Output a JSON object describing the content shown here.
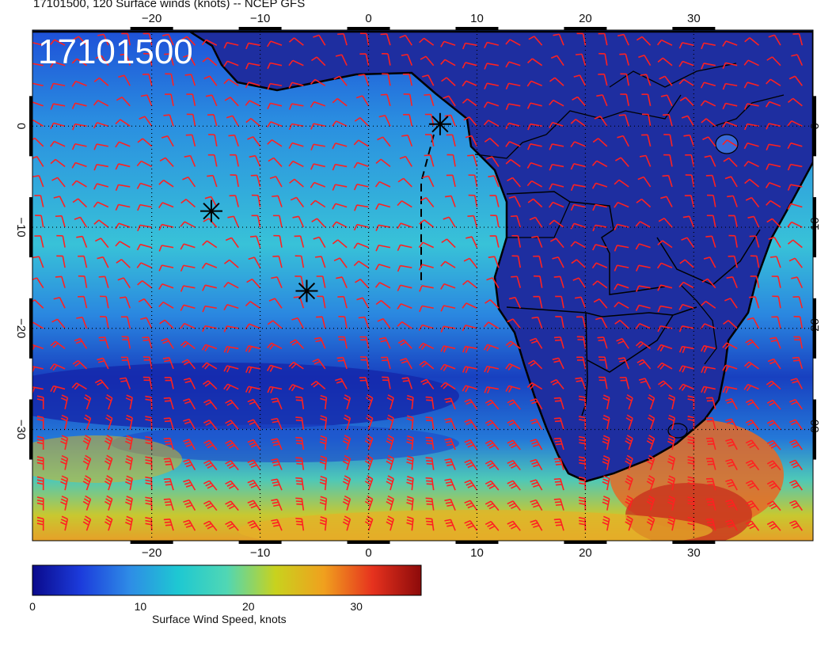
{
  "map": {
    "title": "17101500, 120 Surface winds (knots) -- NCEP GFS",
    "timestamp_label": "17101500",
    "lon_ticks": [
      -20,
      -10,
      0,
      10,
      20,
      30
    ],
    "lat_ticks": [
      0,
      -10,
      -20,
      -30
    ],
    "lon_tick_labels": [
      "−20",
      "−10",
      "0",
      "10",
      "20",
      "30"
    ],
    "lat_tick_labels": [
      "0",
      "−10",
      "−20",
      "−30"
    ],
    "extent": {
      "lon_min": -31,
      "lon_max": 41,
      "lat_min": -41,
      "lat_max": 9.5
    },
    "markers": [
      {
        "lon": -14.5,
        "lat": -8.4
      },
      {
        "lon": -5.7,
        "lat": -16.3
      },
      {
        "lon": 6.6,
        "lat": 0.2
      }
    ],
    "barb_color": "#ff2020"
  },
  "colorbar": {
    "label": "Surface Wind Speed, knots",
    "tick_labels": [
      "0",
      "10",
      "20",
      "30"
    ],
    "tick_values": [
      0,
      10,
      20,
      30
    ],
    "max_value": 36,
    "colors": [
      "#0a0a8c",
      "#1c3cdc",
      "#2e8ce6",
      "#1ec8d2",
      "#50d7b4",
      "#c8d21e",
      "#f0a01e",
      "#e6321e",
      "#8c0a0a"
    ]
  }
}
